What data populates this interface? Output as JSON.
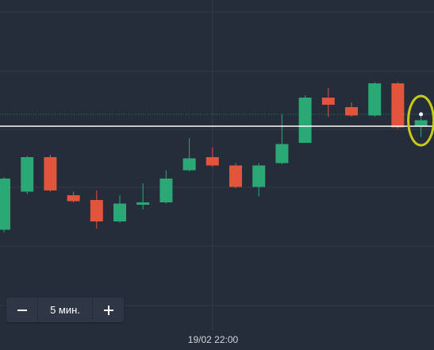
{
  "chart_data": {
    "type": "candlestick",
    "x_label": "19/02 22:00",
    "y_range": [
      100,
      0
    ],
    "grid": true,
    "current_price": 58,
    "colors": {
      "up": "#2aa876",
      "down": "#e0553b",
      "grid": "#313a49",
      "price_line": "#ffffff",
      "dotted_line": "#2f7a5e",
      "highlight": "#c7cc13",
      "background": "#262d3a"
    },
    "candles": [
      {
        "o": 13.5,
        "c": 35,
        "h": 35.5,
        "l": 12.5,
        "dir": "up"
      },
      {
        "o": 29.5,
        "c": 44,
        "h": 44.5,
        "l": 28.5,
        "dir": "up"
      },
      {
        "o": 44,
        "c": 30,
        "h": 45,
        "l": 29.5,
        "dir": "down"
      },
      {
        "o": 28,
        "c": 25.5,
        "h": 29.5,
        "l": 25,
        "dir": "down"
      },
      {
        "o": 26,
        "c": 17,
        "h": 30,
        "l": 14,
        "dir": "down"
      },
      {
        "o": 17,
        "c": 24.5,
        "h": 28,
        "l": 16.5,
        "dir": "up"
      },
      {
        "o": 24,
        "c": 25,
        "h": 33,
        "l": 22,
        "dir": "up"
      },
      {
        "o": 25,
        "c": 35,
        "h": 38.5,
        "l": 24.5,
        "dir": "up"
      },
      {
        "o": 38.5,
        "c": 43.5,
        "h": 52,
        "l": 38,
        "dir": "up"
      },
      {
        "o": 44,
        "c": 40.5,
        "h": 48,
        "l": 40,
        "dir": "down"
      },
      {
        "o": 40.5,
        "c": 31.5,
        "h": 41.5,
        "l": 31,
        "dir": "down"
      },
      {
        "o": 31.5,
        "c": 40.5,
        "h": 41.5,
        "l": 27.5,
        "dir": "up"
      },
      {
        "o": 41.5,
        "c": 49.5,
        "h": 62,
        "l": 41,
        "dir": "up"
      },
      {
        "o": 50,
        "c": 69,
        "h": 70,
        "l": 50,
        "dir": "up"
      },
      {
        "o": 69,
        "c": 66,
        "h": 73,
        "l": 61,
        "dir": "down"
      },
      {
        "o": 65,
        "c": 61.5,
        "h": 67,
        "l": 61,
        "dir": "down"
      },
      {
        "o": 61.5,
        "c": 75,
        "h": 75.5,
        "l": 61,
        "dir": "up"
      },
      {
        "o": 75,
        "c": 56.5,
        "h": 75.5,
        "l": 56,
        "dir": "down"
      },
      {
        "o": 57,
        "c": 59.5,
        "h": 61,
        "l": 52.5,
        "dir": "up"
      }
    ]
  },
  "zoom": {
    "value": "5 мин.",
    "minus_icon": "minus-icon",
    "plus_icon": "plus-icon"
  }
}
